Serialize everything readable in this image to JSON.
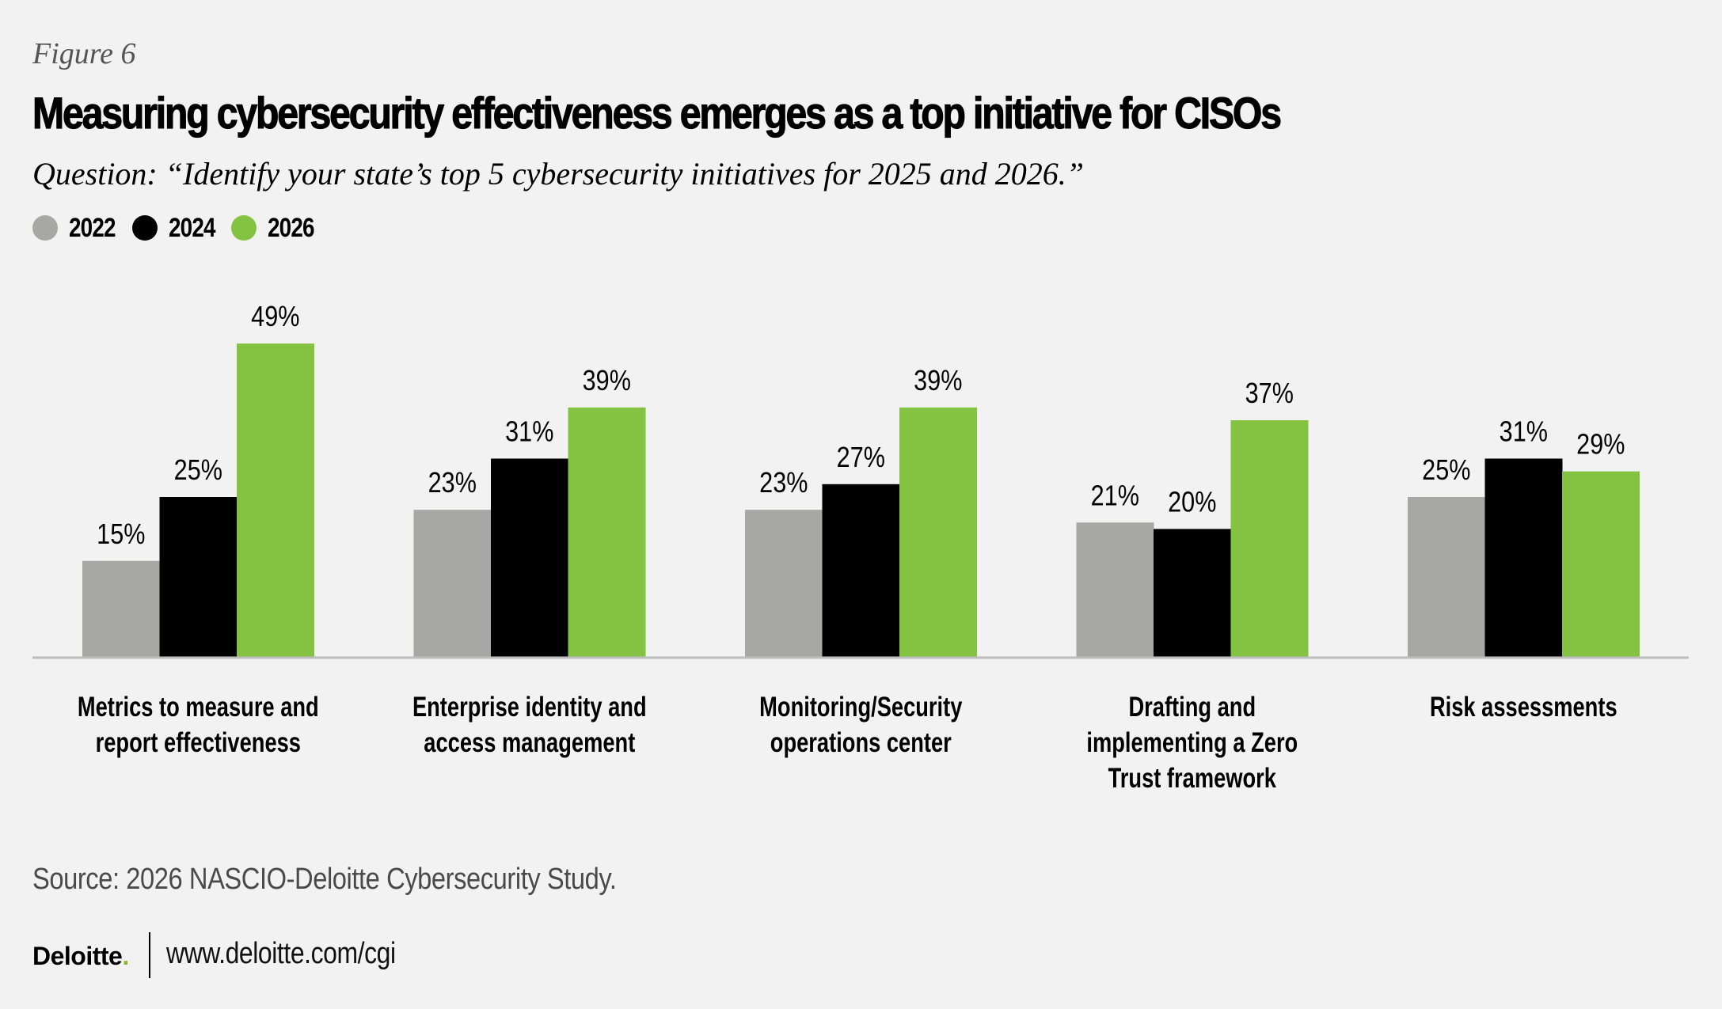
{
  "header": {
    "figure_label": "Figure 6",
    "title": "Measuring cybersecurity effectiveness emerges as a top initiative for CISOs",
    "question": "Question: “Identify your state’s top 5 cybersecurity initiatives for 2025 and 2026.”"
  },
  "legend": [
    {
      "label": "2022",
      "color": "#A7A7A5"
    },
    {
      "label": "2024",
      "color": "#000000"
    },
    {
      "label": "2026",
      "color": "#84C341"
    }
  ],
  "chart_data": {
    "type": "bar",
    "title": "Measuring cybersecurity effectiveness emerges as a top initiative for CISOs",
    "xlabel": "",
    "ylabel": "",
    "ylim": [
      0,
      50
    ],
    "grid": false,
    "legend_position": "top-left",
    "value_suffix": "%",
    "categories": [
      [
        "Metrics to measure and",
        "report effectiveness"
      ],
      [
        "Enterprise identity and",
        "access management"
      ],
      [
        "Monitoring/Security",
        "operations center"
      ],
      [
        "Drafting and",
        "implementing a Zero",
        "Trust framework"
      ],
      [
        "Risk assessments"
      ]
    ],
    "series": [
      {
        "name": "2022",
        "color": "#A7A7A5",
        "values": [
          15,
          23,
          23,
          21,
          25
        ]
      },
      {
        "name": "2024",
        "color": "#000000",
        "values": [
          25,
          31,
          27,
          20,
          31
        ]
      },
      {
        "name": "2026",
        "color": "#84C341",
        "values": [
          49,
          39,
          39,
          37,
          29
        ]
      }
    ]
  },
  "footer": {
    "source": "Source: 2026 NASCIO-Deloitte Cybersecurity Study.",
    "logo_text": "Deloitte",
    "logo_dot": ".",
    "url": "www.deloitte.com/cgi"
  }
}
